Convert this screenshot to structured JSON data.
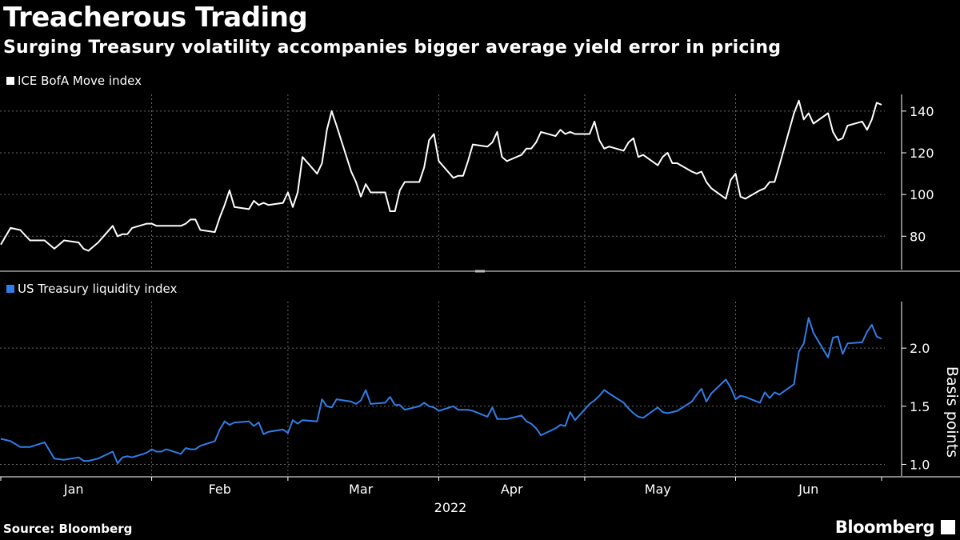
{
  "title": "Treacherous Trading",
  "subtitle": "Surging Treasury volatility accompanies bigger average yield error in pricing",
  "source": "Source: Bloomberg",
  "brand": "Bloomberg",
  "colors": {
    "background": "#000000",
    "move_line": "#ffffff",
    "liquidity_line": "#2f7ee8",
    "grid": "#666666"
  },
  "chart_data": [
    {
      "type": "line",
      "series": [
        {
          "name": "ICE BofA Move index",
          "x": [
            1,
            3,
            5,
            7,
            10,
            12,
            14,
            17,
            18,
            19,
            21,
            24,
            25,
            26,
            27,
            28,
            31,
            32,
            33,
            34,
            35,
            38,
            39,
            40,
            41,
            42,
            45,
            46,
            47,
            48,
            49,
            52,
            53,
            54,
            55,
            56,
            59,
            60,
            61,
            62,
            63,
            66,
            67,
            68,
            69,
            70,
            73,
            74,
            75,
            76,
            77,
            80,
            81,
            82,
            83,
            84,
            87,
            88,
            89,
            90,
            91,
            94,
            95,
            96,
            97,
            98,
            101,
            102,
            103,
            104,
            105,
            108,
            109,
            110,
            111,
            112,
            115,
            116,
            117,
            118,
            119,
            122,
            123,
            124,
            125,
            126,
            129,
            130,
            131,
            132,
            133,
            136,
            137,
            138,
            139,
            140,
            143,
            144,
            145,
            146,
            147,
            150,
            151,
            152,
            153,
            154,
            157,
            158,
            159,
            160,
            161,
            164,
            165,
            166,
            167,
            168,
            171,
            172,
            173,
            174,
            175,
            178,
            179,
            180,
            181,
            182
          ],
          "values": [
            76,
            84,
            83,
            78,
            78,
            74,
            78,
            77,
            74,
            73,
            77,
            85,
            80,
            81,
            81,
            84,
            86,
            86,
            85,
            85,
            85,
            85,
            86,
            88,
            88,
            83,
            82,
            89,
            95,
            102,
            94,
            93,
            97,
            95,
            96,
            95,
            96,
            101,
            94,
            101,
            118,
            110,
            115,
            131,
            140,
            133,
            111,
            106,
            99,
            105,
            101,
            101,
            92,
            92,
            102,
            106,
            106,
            113,
            126,
            129,
            116,
            108,
            109,
            109,
            116,
            124,
            123,
            125,
            130,
            118,
            116,
            119,
            122,
            122,
            125,
            130,
            128,
            131,
            129,
            130,
            129,
            129,
            135,
            126,
            122,
            123,
            121,
            125,
            127,
            118,
            119,
            114,
            118,
            120,
            115,
            115,
            111,
            110,
            111,
            106,
            103,
            98,
            107,
            110,
            99,
            98,
            102,
            103,
            106,
            106,
            114,
            139,
            145,
            136,
            139,
            134,
            139,
            130,
            126,
            127,
            133,
            135,
            131,
            136,
            144,
            143
          ]
        }
      ],
      "ylim": [
        64,
        148
      ],
      "yticks": [
        80,
        100,
        120,
        140
      ]
    },
    {
      "type": "line",
      "series": [
        {
          "name": "US Treasury liquidity index",
          "x": [
            1,
            3,
            5,
            7,
            10,
            12,
            14,
            17,
            18,
            19,
            21,
            24,
            25,
            26,
            27,
            28,
            31,
            32,
            33,
            34,
            35,
            38,
            39,
            40,
            41,
            42,
            45,
            46,
            47,
            48,
            49,
            52,
            53,
            54,
            55,
            56,
            59,
            60,
            61,
            62,
            63,
            66,
            67,
            68,
            69,
            70,
            73,
            74,
            75,
            76,
            77,
            80,
            81,
            82,
            83,
            84,
            87,
            88,
            89,
            90,
            91,
            94,
            95,
            96,
            97,
            98,
            101,
            102,
            103,
            104,
            105,
            108,
            109,
            110,
            111,
            112,
            115,
            116,
            117,
            118,
            119,
            122,
            123,
            124,
            125,
            126,
            129,
            130,
            131,
            132,
            133,
            136,
            137,
            138,
            139,
            140,
            143,
            144,
            145,
            146,
            147,
            150,
            151,
            152,
            153,
            154,
            157,
            158,
            159,
            160,
            161,
            164,
            165,
            166,
            167,
            168,
            171,
            172,
            173,
            174,
            175,
            178,
            179,
            180,
            181,
            182
          ],
          "values": [
            1.22,
            1.2,
            1.15,
            1.15,
            1.19,
            1.05,
            1.04,
            1.06,
            1.03,
            1.03,
            1.05,
            1.11,
            1.01,
            1.06,
            1.07,
            1.06,
            1.1,
            1.13,
            1.11,
            1.11,
            1.13,
            1.09,
            1.14,
            1.13,
            1.13,
            1.16,
            1.2,
            1.3,
            1.37,
            1.34,
            1.36,
            1.37,
            1.33,
            1.36,
            1.26,
            1.28,
            1.3,
            1.27,
            1.38,
            1.35,
            1.38,
            1.37,
            1.56,
            1.5,
            1.49,
            1.56,
            1.54,
            1.52,
            1.55,
            1.64,
            1.52,
            1.53,
            1.58,
            1.51,
            1.51,
            1.47,
            1.5,
            1.53,
            1.5,
            1.49,
            1.46,
            1.5,
            1.47,
            1.47,
            1.47,
            1.46,
            1.41,
            1.49,
            1.39,
            1.39,
            1.39,
            1.42,
            1.37,
            1.35,
            1.31,
            1.25,
            1.31,
            1.34,
            1.33,
            1.45,
            1.38,
            1.52,
            1.55,
            1.59,
            1.64,
            1.61,
            1.53,
            1.48,
            1.44,
            1.41,
            1.4,
            1.49,
            1.45,
            1.44,
            1.45,
            1.46,
            1.54,
            1.6,
            1.65,
            1.54,
            1.61,
            1.73,
            1.66,
            1.56,
            1.59,
            1.58,
            1.53,
            1.62,
            1.57,
            1.62,
            1.6,
            1.69,
            1.97,
            2.04,
            2.26,
            2.13,
            1.92,
            2.09,
            2.1,
            1.95,
            2.04,
            2.05,
            2.14,
            2.2,
            2.1,
            2.08
          ]
        }
      ],
      "ylim": [
        0.9,
        2.4
      ],
      "yticks": [
        1.0,
        1.5,
        2.0
      ],
      "ylabel": "Basis points",
      "x_month_labels": [
        "Jan",
        "Feb",
        "Mar",
        "Apr",
        "May",
        "Jun"
      ],
      "x_month_centers": [
        16,
        46,
        75,
        106,
        136,
        167
      ],
      "x_month_boundaries": [
        1,
        32,
        60,
        91,
        121,
        152,
        182
      ],
      "x_year_label": "2022"
    }
  ]
}
